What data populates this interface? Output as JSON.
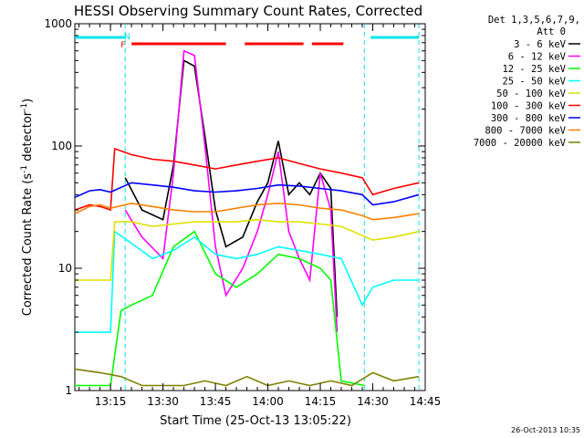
{
  "chart_data": {
    "type": "line",
    "title": "HESSI Observing Summary Count Rates, Corrected",
    "xlabel": "Start Time (25-Oct-13 13:05:22)",
    "ylabel_main": "Corrected Count Rate (s",
    "ylabel_sup1": "-1",
    "ylabel_mid": " detector",
    "ylabel_sup2": "-1",
    "ylabel_end": ")",
    "y_scale": "log",
    "ylim": [
      1,
      1000
    ],
    "xlim_minutes": [
      13.08,
      14.75
    ],
    "x_tick_labels": [
      "13:15",
      "13:30",
      "13:45",
      "14:00",
      "14:15",
      "14:30",
      "14:45"
    ],
    "x_tick_values": [
      13.25,
      13.5,
      13.75,
      14.0,
      14.25,
      14.5,
      14.75
    ],
    "y_tick_labels": [
      "1",
      "10",
      "100",
      "1000"
    ],
    "y_tick_values": [
      1,
      10,
      100,
      1000
    ],
    "timestamp": "26-Oct-2013 10:35",
    "legend_header": "Det 1,3,5,6,7,9,",
    "legend_header2": "Att 0",
    "legend_placement": "right",
    "flags": [
      {
        "label": "F",
        "color": "#ff0000",
        "x": 13.31
      },
      {
        "label": "N",
        "color": "#00e5ee",
        "x": 13.33
      }
    ],
    "flag_bars": [
      {
        "color": "#00e5ee",
        "segments": [
          [
            13.08,
            13.32
          ],
          [
            14.49,
            14.72
          ]
        ]
      },
      {
        "color": "#ff0000",
        "segments": [
          [
            13.35,
            13.8
          ],
          [
            13.89,
            14.17
          ],
          [
            14.21,
            14.36
          ]
        ]
      }
    ],
    "night_boundaries": [
      13.32,
      14.46,
      14.72
    ],
    "series": [
      {
        "name": "3 - 6 keV",
        "color": "#000000",
        "x": [
          13.32,
          13.4,
          13.5,
          13.55,
          13.6,
          13.65,
          13.7,
          13.75,
          13.8,
          13.88,
          13.95,
          14.0,
          14.05,
          14.1,
          14.15,
          14.2,
          14.25,
          14.3,
          14.33
        ],
        "y": [
          55,
          30,
          25,
          70,
          500,
          450,
          120,
          30,
          15,
          18,
          35,
          50,
          110,
          40,
          50,
          40,
          60,
          45,
          4
        ]
      },
      {
        "name": "6 - 12 keV",
        "color": "#ff00ff",
        "x": [
          13.32,
          13.4,
          13.5,
          13.55,
          13.6,
          13.65,
          13.7,
          13.75,
          13.8,
          13.88,
          13.95,
          14.0,
          14.05,
          14.1,
          14.15,
          14.2,
          14.25,
          14.3,
          14.33
        ],
        "y": [
          30,
          18,
          12,
          60,
          600,
          550,
          100,
          15,
          6,
          10,
          20,
          40,
          90,
          20,
          12,
          8,
          60,
          30,
          3
        ]
      },
      {
        "name": "12 - 25 keV",
        "color": "#00ff00",
        "x": [
          13.08,
          13.2,
          13.25,
          13.3,
          13.35,
          13.45,
          13.55,
          13.65,
          13.75,
          13.85,
          13.95,
          14.05,
          14.15,
          14.25,
          14.3,
          14.35,
          14.46
        ],
        "y": [
          1.1,
          1.1,
          1.1,
          4.5,
          5,
          6,
          15,
          20,
          9,
          7,
          9,
          13,
          12,
          10,
          8,
          1.2,
          1.1
        ]
      },
      {
        "name": "25 - 50 keV",
        "color": "#00ffff",
        "x": [
          13.08,
          13.2,
          13.25,
          13.27,
          13.35,
          13.45,
          13.55,
          13.65,
          13.75,
          13.85,
          13.95,
          14.05,
          14.15,
          14.25,
          14.35,
          14.45,
          14.5,
          14.6,
          14.72
        ],
        "y": [
          3,
          3,
          3,
          20,
          16,
          12,
          14,
          18,
          13,
          12,
          13,
          15,
          14,
          13,
          12,
          5,
          7,
          8,
          8
        ]
      },
      {
        "name": "50 - 100 keV",
        "color": "#e0e000",
        "x": [
          13.08,
          13.2,
          13.25,
          13.27,
          13.35,
          13.45,
          13.55,
          13.65,
          13.75,
          13.85,
          13.95,
          14.05,
          14.15,
          14.25,
          14.35,
          14.5,
          14.6,
          14.72
        ],
        "y": [
          8,
          8,
          8,
          24,
          24,
          22,
          23,
          24,
          24,
          24,
          25,
          24,
          24,
          23,
          22,
          17,
          18,
          20
        ]
      },
      {
        "name": "100 - 300 keV",
        "color": "#ff0000",
        "x": [
          13.08,
          13.15,
          13.2,
          13.25,
          13.27,
          13.35,
          13.45,
          13.55,
          13.65,
          13.75,
          13.85,
          13.95,
          14.05,
          14.15,
          14.25,
          14.35,
          14.45,
          14.5,
          14.6,
          14.72
        ],
        "y": [
          30,
          33,
          32,
          30,
          95,
          85,
          78,
          75,
          70,
          65,
          70,
          75,
          80,
          72,
          65,
          60,
          55,
          40,
          45,
          50
        ]
      },
      {
        "name": "300 - 800 keV",
        "color": "#0000ff",
        "x": [
          13.08,
          13.15,
          13.2,
          13.25,
          13.35,
          13.45,
          13.55,
          13.65,
          13.75,
          13.85,
          13.95,
          14.05,
          14.15,
          14.25,
          14.35,
          14.45,
          14.5,
          14.6,
          14.72
        ],
        "y": [
          38,
          43,
          44,
          42,
          50,
          48,
          46,
          43,
          42,
          43,
          45,
          48,
          47,
          45,
          43,
          40,
          33,
          35,
          40
        ]
      },
      {
        "name": "800 - 7000 keV",
        "color": "#ff8000",
        "x": [
          13.08,
          13.15,
          13.2,
          13.25,
          13.35,
          13.45,
          13.55,
          13.65,
          13.75,
          13.85,
          13.95,
          14.05,
          14.15,
          14.25,
          14.35,
          14.45,
          14.5,
          14.6,
          14.72
        ],
        "y": [
          28,
          32,
          33,
          31,
          34,
          32,
          30,
          29,
          29,
          31,
          33,
          34,
          33,
          31,
          30,
          27,
          25,
          26,
          28
        ]
      },
      {
        "name": "7000 - 20000 keV",
        "color": "#808000",
        "x": [
          13.08,
          13.2,
          13.3,
          13.4,
          13.5,
          13.6,
          13.7,
          13.8,
          13.9,
          14.0,
          14.1,
          14.2,
          14.3,
          14.4,
          14.5,
          14.6,
          14.72
        ],
        "y": [
          1.5,
          1.4,
          1.3,
          1.1,
          1.1,
          1.1,
          1.2,
          1.1,
          1.3,
          1.1,
          1.2,
          1.1,
          1.2,
          1.1,
          1.4,
          1.2,
          1.3
        ]
      }
    ]
  }
}
